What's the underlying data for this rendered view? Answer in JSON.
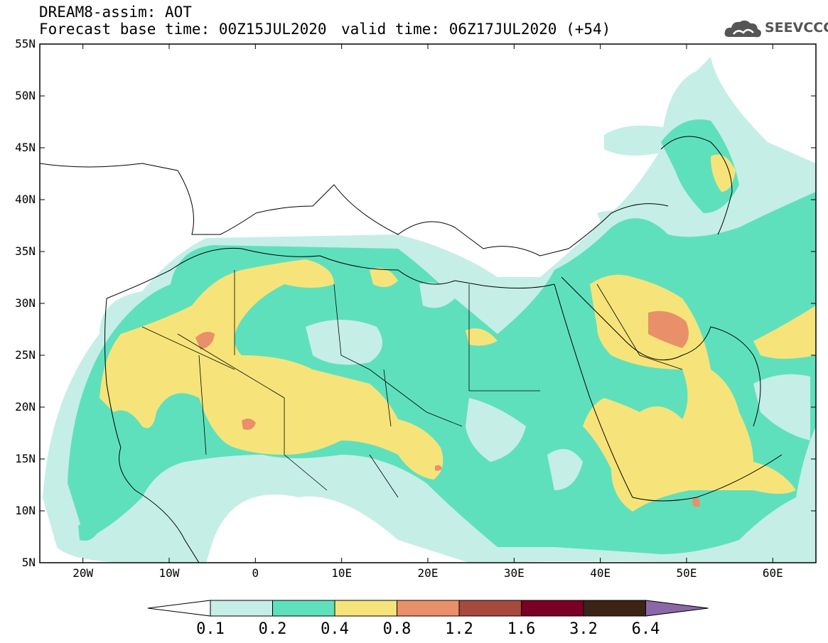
{
  "header": {
    "title": "DREAM8-assim: AOT",
    "base_time": "Forecast base time: 00Z15JUL2020",
    "valid_time": "valid time: 06Z17JUL2020 (+54)"
  },
  "logo": {
    "text": "SEEVCCC",
    "icon": "cloud-icon"
  },
  "map": {
    "variable": "Aerosol optical thickness",
    "lon_range": [
      -25,
      65
    ],
    "lat_range": [
      5,
      55
    ],
    "lat_ticks": [
      "5N",
      "10N",
      "15N",
      "20N",
      "25N",
      "30N",
      "35N",
      "40N",
      "45N",
      "50N",
      "55N"
    ],
    "lon_ticks": [
      "20W",
      "10W",
      "0",
      "10E",
      "20E",
      "30E",
      "40E",
      "50E",
      "60E"
    ]
  },
  "colorbar": {
    "levels": [
      "0.1",
      "0.2",
      "0.4",
      "0.8",
      "1.2",
      "1.6",
      "3.2",
      "6.4"
    ],
    "colors": [
      "#c5eee7",
      "#5fe0bc",
      "#f6e47a",
      "#e9906a",
      "#a8493e",
      "#7a0025",
      "#3b2416",
      "#8b67a8"
    ]
  }
}
